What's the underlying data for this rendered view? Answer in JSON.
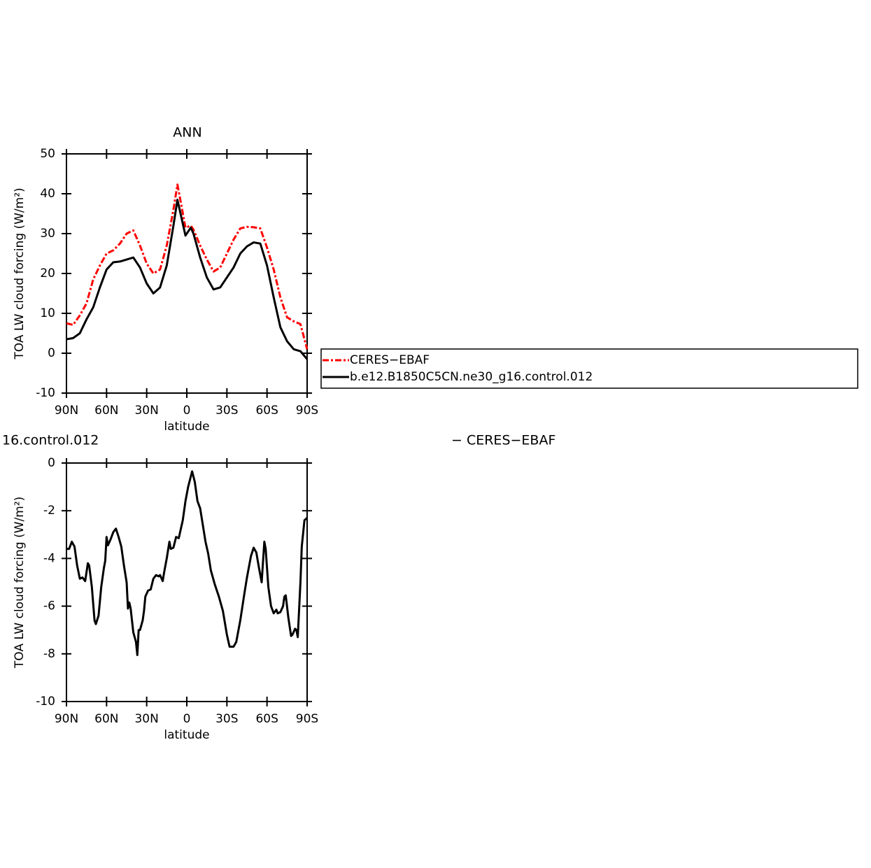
{
  "chart_data": [
    {
      "type": "line",
      "title": "ANN",
      "ylabel": "TOA LW cloud forcing (W/m²)",
      "xlabel": "latitude",
      "x": [
        90,
        85,
        80,
        75,
        70,
        65,
        60,
        55,
        50,
        45,
        40,
        35,
        30,
        25,
        20,
        15,
        10,
        7,
        4,
        1,
        -3,
        -5,
        -10,
        -15,
        -20,
        -25,
        -30,
        -35,
        -40,
        -45,
        -50,
        -55,
        -60,
        -65,
        -70,
        -75,
        -80,
        -85,
        -90
      ],
      "series": [
        {
          "name": "CERES−EBAF",
          "color": "#ff0000",
          "dash": true,
          "values": [
            7.5,
            7.1,
            9.5,
            12.5,
            18.5,
            22,
            25,
            25.8,
            27.5,
            30,
            30.8,
            27,
            22.5,
            20,
            21,
            27,
            36,
            42.3,
            37,
            31.5,
            32,
            31,
            27,
            23.5,
            20.5,
            21.5,
            25,
            28.5,
            31.3,
            31.7,
            31.6,
            31.3,
            26.5,
            21,
            14,
            9,
            8,
            7.3,
            1
          ]
        },
        {
          "name": "b.e12.B1850C5CN.ne30_g16.control.012",
          "color": "#000000",
          "dash": false,
          "values": [
            3.5,
            3.8,
            5,
            8.5,
            11.5,
            16.5,
            21,
            22.8,
            23,
            23.5,
            24,
            21.5,
            17.5,
            15,
            16.5,
            22,
            32,
            38.5,
            34,
            29.5,
            31.5,
            30,
            24,
            19,
            16,
            16.5,
            19,
            21.5,
            25,
            26.8,
            27.8,
            27.5,
            22,
            14,
            6.5,
            3,
            1,
            0.5,
            -1.5
          ]
        }
      ],
      "xlim": [
        90,
        -90
      ],
      "xticks": [
        {
          "value": 90,
          "label": "90N"
        },
        {
          "value": 60,
          "label": "60N"
        },
        {
          "value": 30,
          "label": "30N"
        },
        0,
        {
          "value": -30,
          "label": "30S"
        },
        {
          "value": -60,
          "label": "60S"
        },
        {
          "value": -90,
          "label": "90S"
        }
      ],
      "ylim": [
        -10,
        50
      ],
      "yticks": [
        -10,
        0,
        10,
        20,
        30,
        40,
        50
      ],
      "legend": "right"
    },
    {
      "type": "line",
      "title": "16.control.012",
      "title_right": "− CERES−EBAF",
      "ylabel": "TOA LW cloud forcing (W/m²)",
      "xlabel": "latitude",
      "x": [
        90,
        88,
        86,
        84,
        82,
        80,
        78,
        76,
        74,
        73,
        71,
        69,
        68,
        66,
        64,
        62,
        61,
        60,
        59,
        57,
        55,
        53,
        51,
        49,
        47,
        45,
        44,
        43,
        42,
        40,
        38,
        37,
        36,
        35,
        33,
        32,
        31,
        29,
        27,
        25,
        23,
        21,
        20,
        18,
        17,
        15,
        13,
        12,
        10,
        8,
        6,
        5,
        3,
        1,
        -1,
        -4,
        -6,
        -8,
        -10,
        -12,
        -14,
        -16,
        -18,
        -21,
        -24,
        -27,
        -30,
        -32,
        -35,
        -37,
        -40,
        -43,
        -45,
        -48,
        -50,
        -52,
        -54,
        -56,
        -58,
        -59,
        -61,
        -63,
        -65,
        -67,
        -68,
        -70,
        -72,
        -73,
        -74,
        -76,
        -78,
        -79,
        -81,
        -82,
        -83,
        -85,
        -86,
        -88,
        -90
      ],
      "series": [
        {
          "color": "#000000",
          "dash": false,
          "values": [
            -3.6,
            -3.6,
            -3.3,
            -3.5,
            -4.3,
            -4.85,
            -4.8,
            -4.95,
            -4.2,
            -4.3,
            -5.2,
            -6.6,
            -6.75,
            -6.4,
            -5.2,
            -4.4,
            -4.1,
            -3.1,
            -3.45,
            -3.2,
            -2.9,
            -2.75,
            -3.1,
            -3.5,
            -4.3,
            -5.0,
            -6.1,
            -5.85,
            -6.1,
            -7.1,
            -7.5,
            -8.05,
            -7.0,
            -7.0,
            -6.6,
            -6.2,
            -5.6,
            -5.35,
            -5.3,
            -4.85,
            -4.7,
            -4.75,
            -4.7,
            -4.95,
            -4.6,
            -4.0,
            -3.3,
            -3.6,
            -3.55,
            -3.1,
            -3.15,
            -2.9,
            -2.4,
            -1.6,
            -1.0,
            -0.35,
            -0.8,
            -1.6,
            -1.9,
            -2.6,
            -3.3,
            -3.8,
            -4.5,
            -5.1,
            -5.6,
            -6.2,
            -7.2,
            -7.7,
            -7.7,
            -7.5,
            -6.6,
            -5.5,
            -4.8,
            -3.9,
            -3.55,
            -3.75,
            -4.4,
            -5.0,
            -3.3,
            -3.6,
            -5.2,
            -6.0,
            -6.3,
            -6.15,
            -6.3,
            -6.25,
            -6.0,
            -5.6,
            -5.55,
            -6.5,
            -7.25,
            -7.2,
            -6.95,
            -7.0,
            -7.3,
            -5.0,
            -3.5,
            -2.4,
            -2.3
          ]
        }
      ],
      "xlim": [
        90,
        -90
      ],
      "xticks": [
        {
          "value": 90,
          "label": "90N"
        },
        {
          "value": 60,
          "label": "60N"
        },
        {
          "value": 30,
          "label": "30N"
        },
        0,
        {
          "value": -30,
          "label": "30S"
        },
        {
          "value": -60,
          "label": "60S"
        },
        {
          "value": -90,
          "label": "90S"
        }
      ],
      "ylim": [
        -10,
        0
      ],
      "yticks": [
        -10,
        -8,
        -6,
        -4,
        -2,
        0
      ]
    }
  ]
}
